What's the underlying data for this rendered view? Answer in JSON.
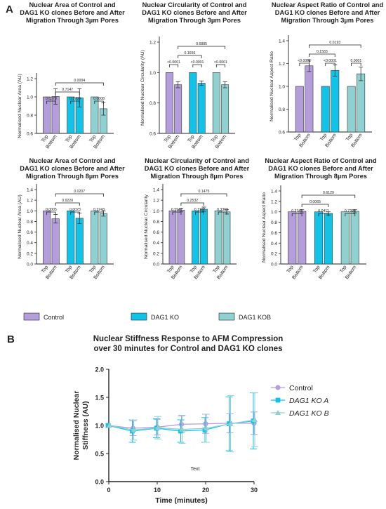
{
  "panel_labels": {
    "a": "A",
    "b": "B"
  },
  "colors": {
    "control": "#b39ddb",
    "ko_a": "#12c3e8",
    "ko_b": "#8fd0d0",
    "text": "#222222"
  },
  "legend_a": [
    "Control",
    "DAG1 KO",
    "DAG1 KOB"
  ],
  "chart_data": [
    {
      "type": "bar",
      "title": [
        "Nuclear Area of Control and",
        "DAG1 KO clones Before and After",
        "Migration Through 3µm Pores"
      ],
      "ylabel": "Normalised Nuclear Area (AU)",
      "categories": [
        "Top",
        "Bottom",
        "Top",
        "Bottom",
        "Top",
        "Bottom"
      ],
      "values": [
        1.0,
        1.005,
        1.0,
        0.99,
        1.0,
        0.87
      ],
      "errors": [
        0,
        0.085,
        0,
        0.1,
        0,
        0.07
      ],
      "groups": [
        "Control",
        "Control",
        "DAG1 KO",
        "DAG1 KO",
        "DAG1 KOB",
        "DAG1 KOB"
      ],
      "ylim": [
        0.6,
        1.2
      ],
      "yticks": [
        "0.6",
        "0.8",
        "1.0",
        "1.2"
      ],
      "pvalues": [
        "0.6370",
        "0.8709",
        "0.0008",
        "0.7147",
        "0.0004"
      ]
    },
    {
      "type": "bar",
      "title": [
        "Nuclear Circularity of Control and",
        "DAG1 KO clones Before and After",
        "Migration Through 3µm Pores"
      ],
      "ylabel": "Normalised Nuclear Circularity (AU)",
      "categories": [
        "Top",
        "Bottom",
        "Top",
        "Bottom",
        "Top",
        "Bottom"
      ],
      "values": [
        1.0,
        0.92,
        1.0,
        0.93,
        1.0,
        0.92
      ],
      "errors": [
        0,
        0.02,
        0,
        0.015,
        0,
        0.02
      ],
      "groups": [
        "Control",
        "Control",
        "DAG1 KO",
        "DAG1 KO",
        "DAG1 KOB",
        "DAG1 KOB"
      ],
      "ylim": [
        0.6,
        1.2
      ],
      "yticks": [
        "0.6",
        "0.8",
        "1.0",
        "1.2"
      ],
      "pvalues": [
        "<0.0001",
        "<0.0001",
        "<0.0001",
        "0.1656",
        "0.6885"
      ]
    },
    {
      "type": "bar",
      "title": [
        "Nuclear Aspect Ratio of Control and",
        "DAG1 KO clones Before and After",
        "Migration Through 3µm Pores"
      ],
      "ylabel": "Normalised Nuclear Aspect Ratio",
      "categories": [
        "Top",
        "Bottom",
        "Top",
        "Bottom",
        "Top",
        "Bottom"
      ],
      "values": [
        1.0,
        1.18,
        1.0,
        1.14,
        1.0,
        1.11
      ],
      "errors": [
        0,
        0.05,
        0,
        0.05,
        0,
        0.06
      ],
      "groups": [
        "Control",
        "Control",
        "DAG1 KO",
        "DAG1 KO",
        "DAG1 KOB",
        "DAG1 KOB"
      ],
      "ylim": [
        0.6,
        1.4
      ],
      "yticks": [
        "0.6",
        "0.8",
        "1.0",
        "1.2",
        "1.4"
      ],
      "pvalues": [
        "<0.0001",
        "<0.0001",
        "0.0001",
        "0.1583",
        "0.0193"
      ]
    },
    {
      "type": "bar",
      "title": [
        "Nuclear Area of Control and",
        "DAG1 KO clones Before and After",
        "Migration Through 8µm Pores"
      ],
      "ylabel": "Normalised Nuclear Area (AU)",
      "categories": [
        "Top",
        "Bottom",
        "Top",
        "Bottom",
        "Top",
        "Bottom"
      ],
      "values": [
        1.0,
        0.85,
        1.0,
        0.86,
        1.0,
        0.95
      ],
      "errors": [
        0,
        0.08,
        0,
        0.1,
        0,
        0.05
      ],
      "groups": [
        "Control",
        "Control",
        "DAG1 KO",
        "DAG1 KO",
        "DAG1 KOB",
        "DAG1 KOB"
      ],
      "ylim": [
        0,
        1.4
      ],
      "yticks": [
        "0.0",
        "0.2",
        "0.4",
        "0.6",
        "0.8",
        "1.0",
        "1.2",
        "1.4"
      ],
      "pvalues": [
        "0.0005",
        "0.0023",
        "0.2243",
        "0.9220",
        "0.0207"
      ]
    },
    {
      "type": "bar",
      "title": [
        "Nuclear Circularity of Control and",
        "DAG1 KO clones Before and After",
        "Migration Through 8µm Pores"
      ],
      "ylabel": "Normalised Nuclear Circularity",
      "categories": [
        "Top",
        "Bottom",
        "Top",
        "Bottom",
        "Top",
        "Bottom"
      ],
      "values": [
        1.0,
        1.01,
        1.0,
        1.03,
        1.0,
        0.98
      ],
      "errors": [
        0,
        0.03,
        0,
        0.04,
        0,
        0.04
      ],
      "groups": [
        "Control",
        "Control",
        "DAG1 KO",
        "DAG1 KO",
        "DAG1 KOB",
        "DAG1 KOB"
      ],
      "ylim": [
        0,
        1.4
      ],
      "yticks": [
        "0.0",
        "0.2",
        "0.4",
        "0.6",
        "0.8",
        "1.0",
        "1.2",
        "1.4"
      ],
      "pvalues": [
        "0.5947",
        "0.1107",
        "0.3369",
        "0.2532",
        "0.1475"
      ]
    },
    {
      "type": "bar",
      "title": [
        "Nuclear Aspect Ratio of Control and",
        "DAG1 KO clones Before and After",
        "Migration Through 8µm Pores"
      ],
      "ylabel": "Normalised Nuclear Aspect Ratio",
      "categories": [
        "Top",
        "Bottom",
        "Top",
        "Bottom",
        "Top",
        "Bottom"
      ],
      "values": [
        1.0,
        1.01,
        1.0,
        0.97,
        1.0,
        1.01
      ],
      "errors": [
        0,
        0.03,
        0,
        0.03,
        0,
        0.03
      ],
      "groups": [
        "Control",
        "Control",
        "DAG1 KO",
        "DAG1 KO",
        "DAG1 KOB",
        "DAG1 KOB"
      ],
      "ylim": [
        0,
        1.4
      ],
      "yticks": [
        "0.0",
        "0.2",
        "0.4",
        "0.6",
        "0.8",
        "1.0",
        "1.2",
        "1.4"
      ],
      "pvalues": [
        "0.3745",
        "0.0411",
        "0.7298",
        "0.0065",
        "0.6129"
      ]
    },
    {
      "type": "line",
      "title": [
        "Nuclear Stiffness Response to AFM Compression",
        "over 30 minutes for Control and DAG1 KO clones"
      ],
      "xlabel": "Time (minutes)",
      "ylabel": "Normalised Nuclear Stiffness (AU)",
      "x": [
        0,
        5,
        10,
        15,
        20,
        25,
        30
      ],
      "xlim": [
        0,
        30
      ],
      "ylim": [
        0,
        2.0
      ],
      "xticks": [
        "0",
        "10",
        "20",
        "30"
      ],
      "yticks": [
        "0.0",
        "0.5",
        "1.0",
        "1.5",
        "2.0"
      ],
      "annotation": "Text",
      "series": [
        {
          "name": "Control",
          "values": [
            1.0,
            0.95,
            0.97,
            1.02,
            1.03,
            1.04,
            1.04
          ],
          "errors": [
            0,
            0.13,
            0.14,
            0.15,
            0.17,
            0.17,
            0.2
          ]
        },
        {
          "name": "DAG1 KO A",
          "values": [
            1.0,
            0.9,
            0.95,
            0.9,
            0.92,
            1.03,
            1.08
          ],
          "errors": [
            0,
            0.2,
            0.17,
            0.2,
            0.22,
            0.48,
            0.5
          ]
        },
        {
          "name": "DAG1 KO B",
          "values": [
            1.0,
            0.92,
            0.96,
            0.93,
            0.95,
            1.03,
            1.1
          ],
          "errors": [
            0,
            0.18,
            0.2,
            0.25,
            0.25,
            0.5,
            0.48
          ]
        }
      ]
    }
  ]
}
